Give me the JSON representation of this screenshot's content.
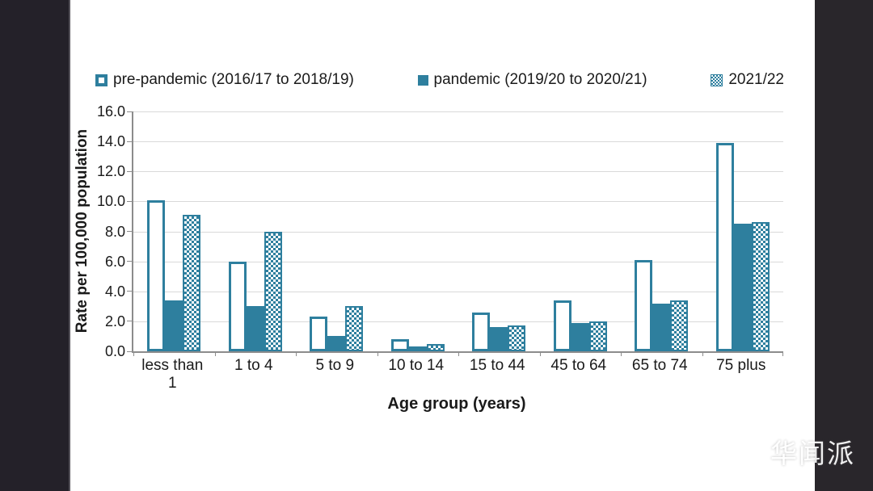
{
  "page": {
    "watermark_text": "华闻派"
  },
  "colors": {
    "teal": "#2E7F9E",
    "grid": "#D9D9D9",
    "axis": "#8C8C8C",
    "panel_left": "#242129",
    "panel_right": "#29262B",
    "text": "#1A1A1A",
    "watermark": "#FFFFFF"
  },
  "chart_data": {
    "type": "bar",
    "title": "",
    "xlabel": "Age group (years)",
    "ylabel": "Rate per 100,000 population",
    "ylim": [
      0,
      16
    ],
    "ytick_step": 2,
    "ytick_labels": [
      "0.0",
      "2.0",
      "4.0",
      "6.0",
      "8.0",
      "10.0",
      "12.0",
      "14.0",
      "16.0"
    ],
    "grid": true,
    "legend_position": "top",
    "categories": [
      "less than 1",
      "1 to 4",
      "5 to 9",
      "10 to 14",
      "15 to 44",
      "45 to 64",
      "65 to 74",
      "75 plus"
    ],
    "series": [
      {
        "name": "pre-pandemic (2016/17 to 2018/19)",
        "style": "outline",
        "values": [
          10.1,
          6.0,
          2.3,
          0.8,
          2.6,
          3.4,
          6.1,
          13.9
        ]
      },
      {
        "name": "pandemic (2019/20 to 2020/21)",
        "style": "solid",
        "values": [
          3.4,
          3.0,
          1.0,
          0.3,
          1.6,
          1.9,
          3.2,
          8.5
        ]
      },
      {
        "name": "2021/22",
        "style": "pattern",
        "values": [
          9.1,
          8.0,
          3.0,
          0.5,
          1.7,
          2.0,
          3.4,
          8.6
        ]
      }
    ]
  }
}
